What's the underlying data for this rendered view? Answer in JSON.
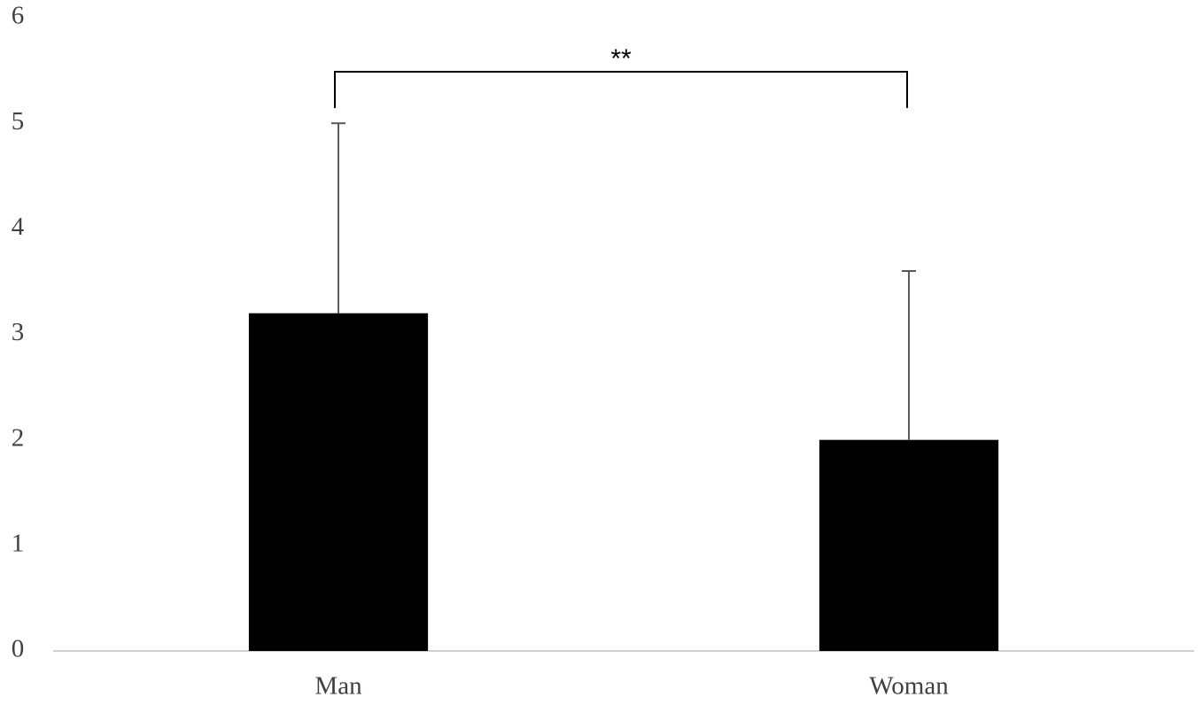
{
  "chart_data": {
    "type": "bar",
    "categories": [
      "Man",
      "Woman"
    ],
    "values": [
      3.2,
      2.0
    ],
    "errors": [
      1.8,
      1.6
    ],
    "color": "#000000",
    "annotation": "**",
    "ylim": [
      0,
      6
    ],
    "yticks": [
      0,
      1,
      2,
      3,
      4,
      5,
      6
    ],
    "grid": false
  }
}
